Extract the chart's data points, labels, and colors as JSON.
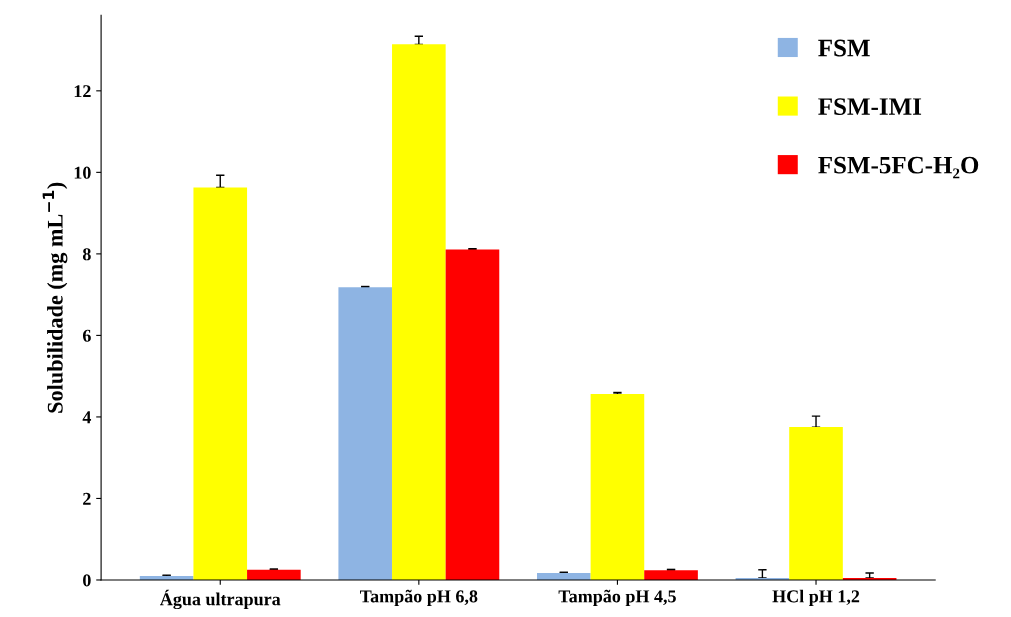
{
  "chart_data": {
    "type": "bar",
    "ylabel": "Solubilidade (mg mL$^{−1}$)",
    "categories": [
      "Água ultrapura",
      "Tampão pH 6,8",
      "Tampão pH 4,5",
      "HCl pH 1,2"
    ],
    "series": [
      {
        "name": "FSM",
        "color": "#8eb4e3",
        "values": [
          0.1,
          7.18,
          0.17,
          0.05
        ],
        "errors": [
          [
            0.1,
            0.12
          ],
          [
            7.18,
            7.2
          ],
          [
            0.17,
            0.19
          ],
          [
            0.05,
            0.25
          ]
        ]
      },
      {
        "name": "FSM-IMI",
        "color": "#ffff00",
        "values": [
          9.63,
          13.14,
          4.56,
          3.75
        ],
        "errors": [
          [
            9.63,
            9.93
          ],
          [
            13.14,
            13.34
          ],
          [
            4.56,
            4.6
          ],
          [
            3.75,
            4.02
          ]
        ]
      },
      {
        "name": "FSM-5FC-H₂O",
        "color": "#ff0000",
        "values": [
          0.25,
          8.11,
          0.24,
          0.05
        ],
        "errors": [
          [
            0.25,
            0.27
          ],
          [
            8.11,
            8.13
          ],
          [
            0.24,
            0.26
          ],
          [
            0.05,
            0.17
          ]
        ]
      }
    ],
    "ylim": [
      0,
      13.85
    ],
    "yticks": [
      0,
      2,
      4,
      6,
      8,
      10,
      12
    ],
    "grid": false,
    "legend": "top right"
  }
}
